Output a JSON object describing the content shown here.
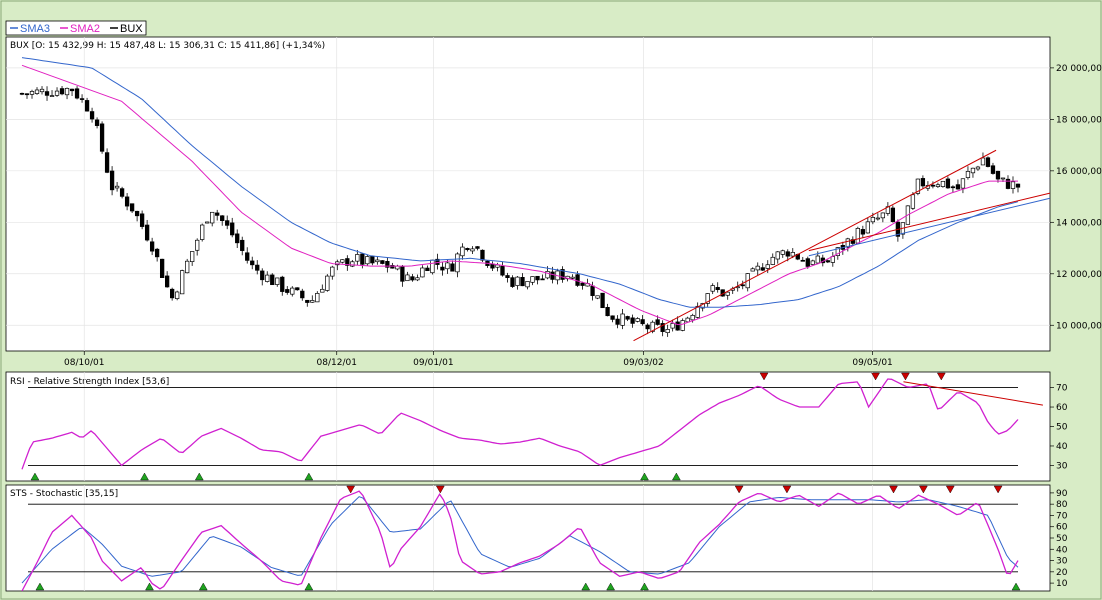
{
  "chart_data": {
    "type": "candlestick",
    "legend": {
      "placement": "top-left",
      "items": [
        {
          "name": "SMA3",
          "color": "#3366cc"
        },
        {
          "name": "SMA2",
          "color": "#e020c0"
        },
        {
          "name": "BUX",
          "color": "#000000"
        }
      ]
    },
    "price_panel": {
      "info": "BUX [O: 15 432,99  H: 15 487,48  L: 15 306,31  C: 15 411,86] (+1,34%)",
      "ylim": [
        9000,
        21200
      ],
      "yticks": [
        "20 000,00",
        "18 000,00",
        "16 000,00",
        "14 000,00",
        "12 000,00",
        "10 000,00"
      ],
      "ytick_values": [
        20000,
        18000,
        16000,
        14000,
        12000,
        10000
      ],
      "xticks": [
        "08/10/01",
        "08/12/01",
        "09/01/01",
        "09/03/02",
        "09/05/01"
      ],
      "xtick_positions": [
        0.0625,
        0.316,
        0.413,
        0.624,
        0.854
      ],
      "close_keypoints": [
        [
          0,
          19000
        ],
        [
          0.05,
          19200
        ],
        [
          0.07,
          18300
        ],
        [
          0.09,
          15400
        ],
        [
          0.11,
          14600
        ],
        [
          0.13,
          13200
        ],
        [
          0.15,
          11000
        ],
        [
          0.17,
          12800
        ],
        [
          0.19,
          14600
        ],
        [
          0.21,
          13600
        ],
        [
          0.23,
          12300
        ],
        [
          0.26,
          11500
        ],
        [
          0.29,
          10900
        ],
        [
          0.31,
          12100
        ],
        [
          0.33,
          12600
        ],
        [
          0.35,
          12400
        ],
        [
          0.37,
          12300
        ],
        [
          0.39,
          11700
        ],
        [
          0.41,
          12500
        ],
        [
          0.43,
          12200
        ],
        [
          0.44,
          12900
        ],
        [
          0.45,
          13300
        ],
        [
          0.47,
          12400
        ],
        [
          0.49,
          11700
        ],
        [
          0.52,
          11800
        ],
        [
          0.55,
          12000
        ],
        [
          0.57,
          11500
        ],
        [
          0.59,
          10400
        ],
        [
          0.61,
          10100
        ],
        [
          0.63,
          9900
        ],
        [
          0.65,
          9800
        ],
        [
          0.67,
          10400
        ],
        [
          0.69,
          11400
        ],
        [
          0.71,
          11200
        ],
        [
          0.73,
          11800
        ],
        [
          0.75,
          12600
        ],
        [
          0.77,
          12900
        ],
        [
          0.79,
          12400
        ],
        [
          0.81,
          12500
        ],
        [
          0.83,
          13300
        ],
        [
          0.85,
          13900
        ],
        [
          0.87,
          14400
        ],
        [
          0.88,
          13400
        ],
        [
          0.9,
          15500
        ],
        [
          0.92,
          15600
        ],
        [
          0.94,
          15300
        ],
        [
          0.95,
          15900
        ],
        [
          0.965,
          16500
        ],
        [
          0.98,
          15600
        ],
        [
          1.0,
          15400
        ]
      ],
      "sma2_keypoints": [
        [
          0,
          20100
        ],
        [
          0.1,
          18700
        ],
        [
          0.17,
          16400
        ],
        [
          0.22,
          14400
        ],
        [
          0.27,
          13000
        ],
        [
          0.31,
          12400
        ],
        [
          0.35,
          12300
        ],
        [
          0.39,
          12300
        ],
        [
          0.43,
          12500
        ],
        [
          0.47,
          12400
        ],
        [
          0.52,
          12100
        ],
        [
          0.57,
          11600
        ],
        [
          0.62,
          10600
        ],
        [
          0.66,
          10000
        ],
        [
          0.69,
          10400
        ],
        [
          0.73,
          11200
        ],
        [
          0.77,
          12000
        ],
        [
          0.8,
          12400
        ],
        [
          0.83,
          13000
        ],
        [
          0.86,
          13600
        ],
        [
          0.89,
          14300
        ],
        [
          0.93,
          15100
        ],
        [
          0.97,
          15600
        ],
        [
          1.0,
          15600
        ]
      ],
      "sma3_keypoints": [
        [
          0,
          20400
        ],
        [
          0.07,
          20000
        ],
        [
          0.12,
          18800
        ],
        [
          0.17,
          17000
        ],
        [
          0.22,
          15400
        ],
        [
          0.27,
          14000
        ],
        [
          0.31,
          13200
        ],
        [
          0.35,
          12700
        ],
        [
          0.4,
          12500
        ],
        [
          0.45,
          12600
        ],
        [
          0.5,
          12400
        ],
        [
          0.56,
          12000
        ],
        [
          0.6,
          11600
        ],
        [
          0.64,
          11000
        ],
        [
          0.67,
          10700
        ],
        [
          0.7,
          10700
        ],
        [
          0.74,
          10800
        ],
        [
          0.78,
          11000
        ],
        [
          0.82,
          11500
        ],
        [
          0.86,
          12300
        ],
        [
          0.9,
          13300
        ],
        [
          0.94,
          14000
        ],
        [
          0.98,
          14600
        ],
        [
          1.0,
          14800
        ]
      ],
      "trendlines": [
        {
          "color": "#cc0000",
          "from": [
            0.614,
            9400
          ],
          "to": [
            0.978,
            16800
          ]
        },
        {
          "color": "#cc0000",
          "from": [
            0.79,
            12900
          ],
          "to": [
            1.05,
            15300
          ]
        },
        {
          "color": "#3366cc",
          "from": [
            0.79,
            12700
          ],
          "to": [
            1.05,
            15100
          ]
        }
      ]
    },
    "rsi_panel": {
      "title": "RSI - Relative Strength Index [53,6]",
      "ylim": [
        22,
        78
      ],
      "yticks": [
        "70",
        "60",
        "50",
        "40",
        "30"
      ],
      "ytick_values": [
        70,
        60,
        50,
        40,
        30
      ],
      "hlines": [
        70,
        30
      ],
      "keypoints": [
        [
          0,
          28
        ],
        [
          0.01,
          42
        ],
        [
          0.03,
          44
        ],
        [
          0.05,
          47
        ],
        [
          0.06,
          44
        ],
        [
          0.07,
          48
        ],
        [
          0.08,
          42
        ],
        [
          0.1,
          30
        ],
        [
          0.12,
          38
        ],
        [
          0.14,
          44
        ],
        [
          0.16,
          36
        ],
        [
          0.18,
          45
        ],
        [
          0.2,
          49
        ],
        [
          0.22,
          44
        ],
        [
          0.24,
          38
        ],
        [
          0.26,
          37
        ],
        [
          0.28,
          32
        ],
        [
          0.3,
          45
        ],
        [
          0.32,
          48
        ],
        [
          0.34,
          51
        ],
        [
          0.36,
          46
        ],
        [
          0.38,
          57
        ],
        [
          0.4,
          53
        ],
        [
          0.42,
          48
        ],
        [
          0.44,
          44
        ],
        [
          0.46,
          43
        ],
        [
          0.48,
          41
        ],
        [
          0.5,
          42
        ],
        [
          0.52,
          44
        ],
        [
          0.54,
          40
        ],
        [
          0.56,
          37
        ],
        [
          0.58,
          30
        ],
        [
          0.6,
          34
        ],
        [
          0.62,
          37
        ],
        [
          0.64,
          40
        ],
        [
          0.66,
          48
        ],
        [
          0.68,
          56
        ],
        [
          0.7,
          62
        ],
        [
          0.72,
          66
        ],
        [
          0.74,
          71
        ],
        [
          0.76,
          64
        ],
        [
          0.78,
          60
        ],
        [
          0.8,
          60
        ],
        [
          0.82,
          72
        ],
        [
          0.84,
          73
        ],
        [
          0.85,
          60
        ],
        [
          0.87,
          75
        ],
        [
          0.89,
          70
        ],
        [
          0.91,
          72
        ],
        [
          0.92,
          58
        ],
        [
          0.94,
          68
        ],
        [
          0.96,
          62
        ],
        [
          0.97,
          52
        ],
        [
          0.98,
          46
        ],
        [
          0.99,
          48
        ],
        [
          1.0,
          53.6
        ]
      ],
      "markers_up": [
        0.013,
        0.123,
        0.178,
        0.288,
        0.625,
        0.657
      ],
      "markers_down": [
        0.745,
        0.857,
        0.887,
        0.923
      ],
      "trendline": {
        "from": [
          0.885,
          73
        ],
        "to": [
          1.025,
          61
        ]
      }
    },
    "sts_panel": {
      "title": "STS - Stochastic [35,15]",
      "ylim": [
        3,
        97
      ],
      "yticks": [
        "90",
        "80",
        "70",
        "60",
        "50",
        "40",
        "30",
        "20",
        "10"
      ],
      "ytick_values": [
        90,
        80,
        70,
        60,
        50,
        40,
        30,
        20,
        10
      ],
      "hlines": [
        80,
        20
      ],
      "k_keypoints": [
        [
          0,
          3
        ],
        [
          0.015,
          28
        ],
        [
          0.03,
          55
        ],
        [
          0.05,
          70
        ],
        [
          0.06,
          60
        ],
        [
          0.07,
          50
        ],
        [
          0.08,
          30
        ],
        [
          0.1,
          12
        ],
        [
          0.12,
          24
        ],
        [
          0.13,
          10
        ],
        [
          0.14,
          4
        ],
        [
          0.16,
          30
        ],
        [
          0.18,
          55
        ],
        [
          0.2,
          61
        ],
        [
          0.22,
          45
        ],
        [
          0.24,
          30
        ],
        [
          0.26,
          12
        ],
        [
          0.28,
          8
        ],
        [
          0.3,
          50
        ],
        [
          0.32,
          85
        ],
        [
          0.34,
          92
        ],
        [
          0.36,
          55
        ],
        [
          0.37,
          22
        ],
        [
          0.38,
          40
        ],
        [
          0.4,
          60
        ],
        [
          0.42,
          90
        ],
        [
          0.43,
          70
        ],
        [
          0.44,
          30
        ],
        [
          0.46,
          18
        ],
        [
          0.48,
          20
        ],
        [
          0.5,
          28
        ],
        [
          0.52,
          34
        ],
        [
          0.54,
          45
        ],
        [
          0.56,
          60
        ],
        [
          0.58,
          28
        ],
        [
          0.6,
          16
        ],
        [
          0.62,
          20
        ],
        [
          0.64,
          14
        ],
        [
          0.66,
          20
        ],
        [
          0.68,
          46
        ],
        [
          0.7,
          62
        ],
        [
          0.72,
          82
        ],
        [
          0.74,
          90
        ],
        [
          0.76,
          82
        ],
        [
          0.78,
          88
        ],
        [
          0.8,
          78
        ],
        [
          0.82,
          90
        ],
        [
          0.84,
          80
        ],
        [
          0.86,
          88
        ],
        [
          0.88,
          76
        ],
        [
          0.9,
          88
        ],
        [
          0.92,
          80
        ],
        [
          0.94,
          70
        ],
        [
          0.96,
          82
        ],
        [
          0.98,
          40
        ],
        [
          0.99,
          15
        ],
        [
          1.0,
          30
        ]
      ],
      "d_keypoints": [
        [
          0,
          10
        ],
        [
          0.03,
          40
        ],
        [
          0.06,
          60
        ],
        [
          0.08,
          45
        ],
        [
          0.1,
          25
        ],
        [
          0.13,
          16
        ],
        [
          0.16,
          20
        ],
        [
          0.19,
          52
        ],
        [
          0.22,
          42
        ],
        [
          0.25,
          24
        ],
        [
          0.28,
          16
        ],
        [
          0.31,
          62
        ],
        [
          0.34,
          88
        ],
        [
          0.37,
          55
        ],
        [
          0.4,
          58
        ],
        [
          0.43,
          84
        ],
        [
          0.46,
          36
        ],
        [
          0.49,
          24
        ],
        [
          0.52,
          32
        ],
        [
          0.55,
          52
        ],
        [
          0.58,
          38
        ],
        [
          0.61,
          20
        ],
        [
          0.64,
          18
        ],
        [
          0.67,
          28
        ],
        [
          0.7,
          60
        ],
        [
          0.73,
          82
        ],
        [
          0.76,
          86
        ],
        [
          0.79,
          84
        ],
        [
          0.82,
          84
        ],
        [
          0.85,
          84
        ],
        [
          0.88,
          82
        ],
        [
          0.91,
          84
        ],
        [
          0.94,
          78
        ],
        [
          0.97,
          70
        ],
        [
          0.99,
          32
        ],
        [
          1.0,
          24
        ]
      ],
      "markers_up": [
        0.018,
        0.128,
        0.182,
        0.288,
        0.566,
        0.591,
        0.625,
        0.998
      ],
      "markers_down": [
        0.33,
        0.42,
        0.72,
        0.768,
        0.875,
        0.905,
        0.932,
        0.98
      ]
    }
  }
}
